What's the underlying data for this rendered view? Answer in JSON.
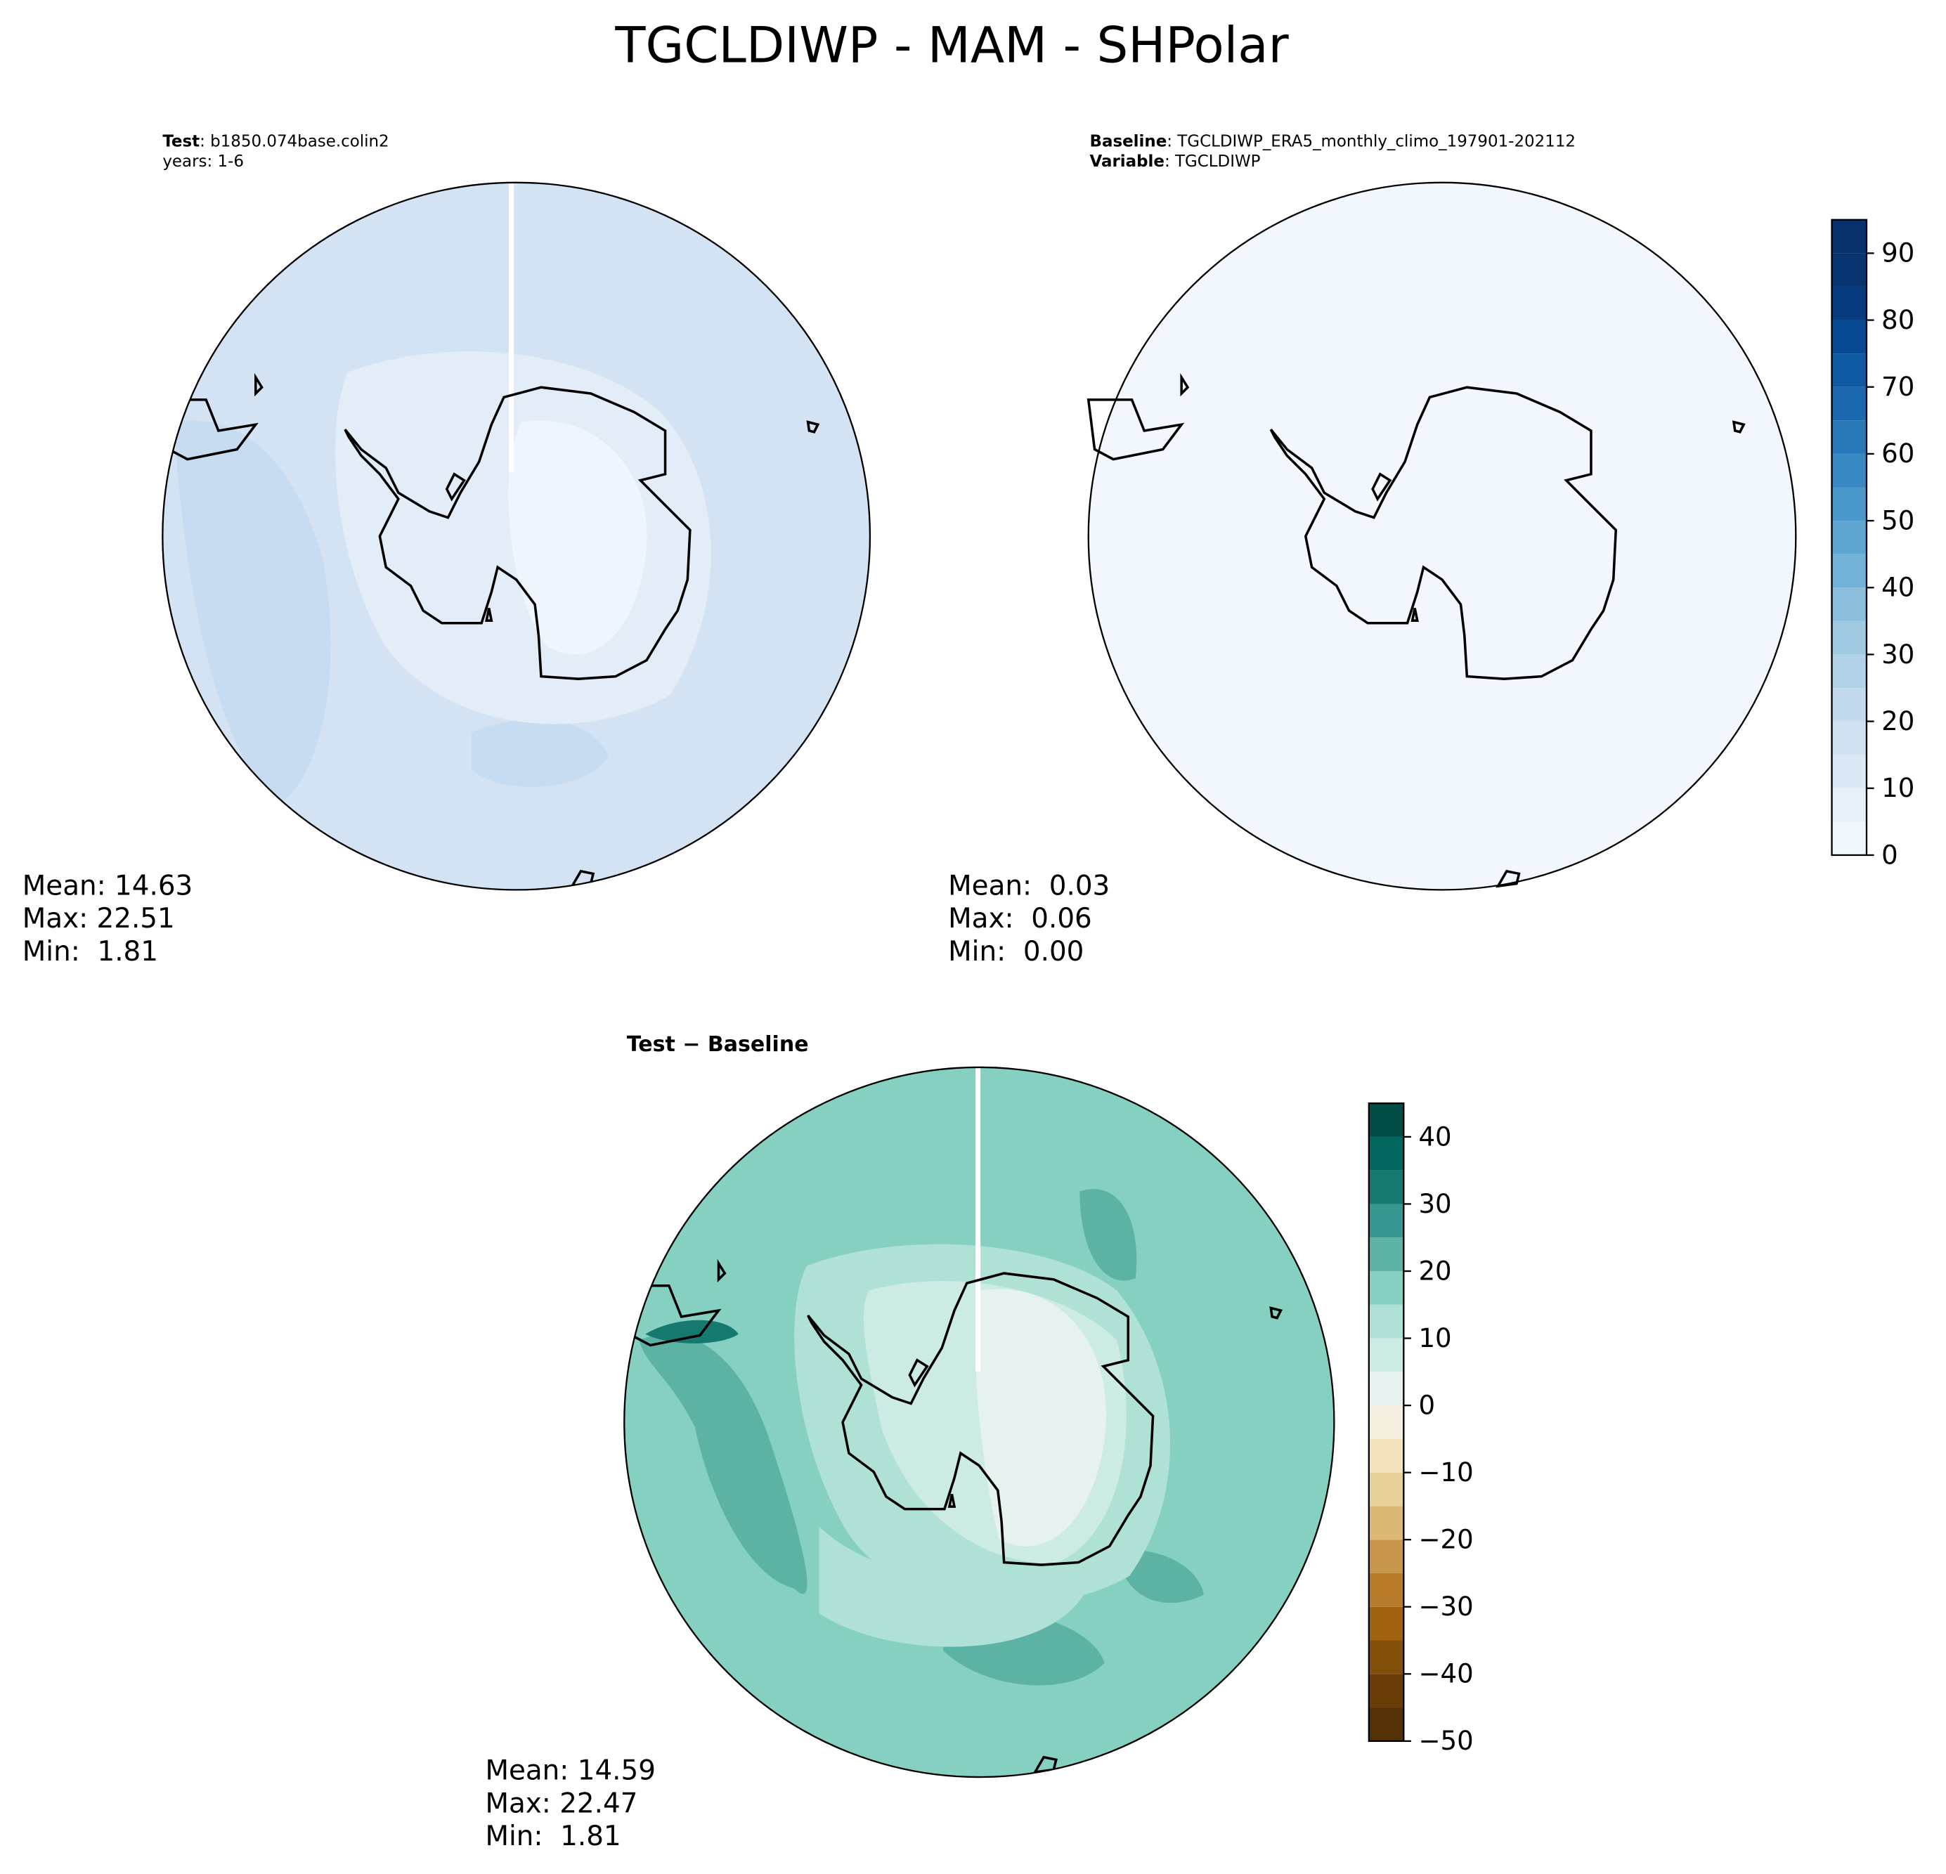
{
  "title": "TGCLDIWP - MAM - SHPolar",
  "panels": [
    {
      "header": [
        {
          "bold": "Test",
          "text": ": b1850.074base.colin2"
        },
        {
          "text": "years: 1-6"
        }
      ],
      "stats": [
        "Mean: 14.63",
        "Max: 22.51",
        "Min:  1.81"
      ]
    },
    {
      "header": [
        {
          "bold": "Baseline",
          "text": ": TGCLDIWP_ERA5_monthly_climo_197901-202112"
        },
        {
          "bold": "Variable",
          "text": ": TGCLDIWP"
        }
      ],
      "stats": [
        "Mean:  0.03",
        "Max:  0.06",
        "Min:  0.00"
      ]
    },
    {
      "header": [
        {
          "bold": "Test − Baseline"
        }
      ],
      "stats": [
        "Mean: 14.59",
        "Max: 22.47",
        "Min:  1.81"
      ]
    }
  ],
  "colorbars": [
    {
      "ylim": [
        0,
        95
      ],
      "yticks": [
        0,
        10,
        20,
        30,
        40,
        50,
        60,
        70,
        80,
        90
      ],
      "levels": [
        0,
        5,
        10,
        15,
        20,
        25,
        30,
        35,
        40,
        45,
        50,
        55,
        60,
        65,
        70,
        75,
        80,
        85,
        90,
        95
      ],
      "colors": [
        "#f2f7fd",
        "#e6f0f9",
        "#dbe9f6",
        "#d0e2f2",
        "#c3daee",
        "#b2d2e8",
        "#a0cae2",
        "#8bbfdd",
        "#73b2d8",
        "#5ea5d1",
        "#4a97c9",
        "#3888c1",
        "#2878b8",
        "#1b68ae",
        "#0f59a2",
        "#084a91",
        "#083c7e",
        "#08346f",
        "#08306b"
      ]
    },
    {
      "ylim": [
        -50,
        45
      ],
      "yticks": [
        {
          "value": -50,
          "label": "−50"
        },
        {
          "value": -40,
          "label": "−40"
        },
        {
          "value": -30,
          "label": "−30"
        },
        {
          "value": -20,
          "label": "−20"
        },
        {
          "value": -10,
          "label": "−10"
        },
        0,
        10,
        20,
        30,
        40
      ],
      "levels": [
        -50,
        -45,
        -40,
        -35,
        -30,
        -25,
        -20,
        -15,
        -10,
        -5,
        0,
        5,
        10,
        15,
        20,
        25,
        30,
        35,
        40,
        45
      ],
      "colors": [
        "#543005",
        "#6a3c07",
        "#83500b",
        "#a1630f",
        "#b87b2a",
        "#c9974c",
        "#dbb874",
        "#e8d199",
        "#f2e3bd",
        "#f5efe0",
        "#e5f2ef",
        "#cdebe5",
        "#b0e1d6",
        "#85d0c1",
        "#5cb3a4",
        "#35978f",
        "#167970",
        "#01665e",
        "#014c44"
      ]
    }
  ]
}
